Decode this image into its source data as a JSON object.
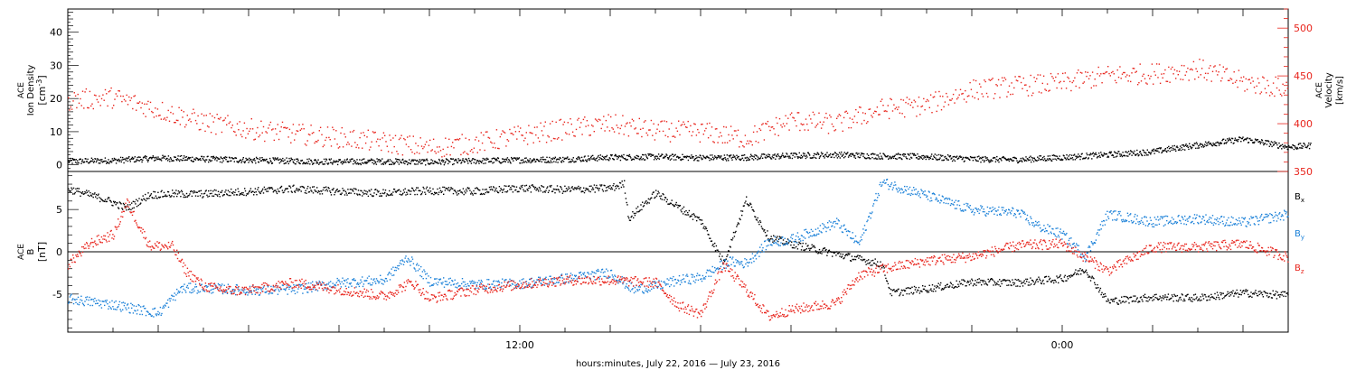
{
  "colors": {
    "black": "#000000",
    "red": "#e8241c",
    "blue": "#1a80d8"
  },
  "chart_data": [
    {
      "type": "scatter",
      "panel": "top",
      "ylabel_lines": [
        "ACE",
        "Ion Density",
        "[cm",
        "-3",
        "]"
      ],
      "ylim": [
        -2,
        47
      ],
      "yticks": [
        0,
        10,
        20,
        30,
        40
      ],
      "y2label_lines": [
        "ACE",
        "Velocity",
        "[km/s]"
      ],
      "y2lim": [
        350,
        520
      ],
      "y2ticks": [
        350,
        400,
        450,
        500
      ],
      "series": [
        {
          "role": "density",
          "axis": "left",
          "color": "#000000",
          "points": [
            [
              0,
              1.2
            ],
            [
              1,
              1.5
            ],
            [
              2,
              2.2
            ],
            [
              3,
              1.9
            ],
            [
              4,
              1.6
            ],
            [
              5,
              1.3
            ],
            [
              6,
              1.1
            ],
            [
              7,
              1.2
            ],
            [
              8,
              1.0
            ],
            [
              9,
              1.3
            ],
            [
              10,
              1.6
            ],
            [
              11,
              1.8
            ],
            [
              12,
              2.4
            ],
            [
              13,
              2.6
            ],
            [
              14,
              2.3
            ],
            [
              15,
              2.4
            ],
            [
              16,
              2.9
            ],
            [
              17,
              3.2
            ],
            [
              18,
              2.8
            ],
            [
              19,
              2.6
            ],
            [
              20,
              1.9
            ],
            [
              21,
              1.7
            ],
            [
              22,
              2.4
            ],
            [
              23,
              3.2
            ],
            [
              24,
              4.1
            ],
            [
              24.5,
              5.2
            ],
            [
              25,
              6.1
            ],
            [
              25.5,
              7.0
            ],
            [
              26,
              7.9
            ],
            [
              26.5,
              6.8
            ],
            [
              27,
              5.5
            ],
            [
              27.5,
              6.0
            ]
          ]
        },
        {
          "role": "velocity",
          "axis": "right",
          "color": "#e8241c",
          "points": [
            [
              0,
              425
            ],
            [
              1,
              428
            ],
            [
              2,
              415
            ],
            [
              3,
              402
            ],
            [
              4,
              395
            ],
            [
              5,
              390
            ],
            [
              6,
              386
            ],
            [
              7,
              381
            ],
            [
              8,
              375
            ],
            [
              9,
              380
            ],
            [
              10,
              388
            ],
            [
              11,
              395
            ],
            [
              12,
              400
            ],
            [
              13,
              393
            ],
            [
              14,
              392
            ],
            [
              15,
              385
            ],
            [
              16,
              404
            ],
            [
              17,
              400
            ],
            [
              18,
              416
            ],
            [
              19,
              420
            ],
            [
              20,
              436
            ],
            [
              21,
              440
            ],
            [
              22,
              443
            ],
            [
              23,
              451
            ],
            [
              24,
              453
            ],
            [
              25,
              458
            ],
            [
              26,
              444
            ],
            [
              27,
              437
            ]
          ]
        }
      ]
    },
    {
      "type": "scatter",
      "panel": "bottom",
      "ylabel_lines": [
        "ACE",
        "B",
        "[nT]"
      ],
      "ylim": [
        -9.5,
        9.5
      ],
      "yticks": [
        -5,
        0,
        5
      ],
      "legend": {
        "placement": "right",
        "entries": [
          "B",
          "B",
          "B"
        ],
        "subscripts": [
          "x",
          "y",
          "z"
        ]
      },
      "series": [
        {
          "role": "Bx",
          "color": "#000000",
          "points": [
            [
              0,
              7.5
            ],
            [
              0.8,
              6.3
            ],
            [
              1.3,
              5.2
            ],
            [
              1.8,
              6.8
            ],
            [
              2.3,
              6.9
            ],
            [
              3,
              6.9
            ],
            [
              4,
              7.2
            ],
            [
              5,
              7.5
            ],
            [
              6,
              7.2
            ],
            [
              7,
              7.0
            ],
            [
              8,
              7.3
            ],
            [
              9,
              7.2
            ],
            [
              10,
              7.6
            ],
            [
              11,
              7.4
            ],
            [
              12,
              7.6
            ],
            [
              12.3,
              8.1
            ],
            [
              12.4,
              4.0
            ],
            [
              13,
              7.0
            ],
            [
              14,
              3.7
            ],
            [
              14.5,
              -1.2
            ],
            [
              15,
              6.2
            ],
            [
              15.5,
              1.8
            ],
            [
              16,
              1.0
            ],
            [
              17,
              -0.2
            ],
            [
              18,
              -1.4
            ],
            [
              18.2,
              -4.8
            ],
            [
              19,
              -4.3
            ],
            [
              20,
              -3.5
            ],
            [
              21,
              -3.6
            ],
            [
              22,
              -3.1
            ],
            [
              22.5,
              -2.0
            ],
            [
              23,
              -5.8
            ],
            [
              24,
              -5.3
            ],
            [
              25,
              -5.4
            ],
            [
              26,
              -4.8
            ],
            [
              27,
              -5.1
            ]
          ]
        },
        {
          "role": "By",
          "color": "#1a80d8",
          "points": [
            [
              0,
              -5.5
            ],
            [
              1,
              -6.2
            ],
            [
              2,
              -7.2
            ],
            [
              2.5,
              -4.3
            ],
            [
              3,
              -4.2
            ],
            [
              4,
              -4.5
            ],
            [
              5,
              -4.4
            ],
            [
              6,
              -3.6
            ],
            [
              7,
              -3.3
            ],
            [
              7.5,
              -0.6
            ],
            [
              8,
              -3.4
            ],
            [
              9,
              -3.8
            ],
            [
              10,
              -3.7
            ],
            [
              11,
              -3.1
            ],
            [
              12,
              -2.4
            ],
            [
              12.5,
              -4.4
            ],
            [
              13,
              -4.0
            ],
            [
              13.5,
              -3.3
            ],
            [
              14,
              -3.0
            ],
            [
              14.6,
              -1.1
            ],
            [
              15,
              -1.3
            ],
            [
              15.5,
              1.2
            ],
            [
              16,
              1.5
            ],
            [
              17,
              3.5
            ],
            [
              17.5,
              1.0
            ],
            [
              18,
              8.3
            ],
            [
              19,
              6.7
            ],
            [
              20,
              5.0
            ],
            [
              21,
              4.7
            ],
            [
              21.5,
              3.0
            ],
            [
              22,
              2.1
            ],
            [
              22.5,
              -0.5
            ],
            [
              23,
              4.5
            ],
            [
              24,
              3.6
            ],
            [
              25,
              4.0
            ],
            [
              26,
              3.5
            ],
            [
              27,
              4.5
            ]
          ]
        },
        {
          "role": "Bz",
          "color": "#e8241c",
          "points": [
            [
              0,
              -1.4
            ],
            [
              0.5,
              1.1
            ],
            [
              1,
              2.1
            ],
            [
              1.3,
              5.9
            ],
            [
              1.8,
              0.8
            ],
            [
              2.3,
              0.7
            ],
            [
              2.6,
              -2.2
            ],
            [
              3,
              -4.0
            ],
            [
              3.5,
              -4.5
            ],
            [
              4,
              -4.5
            ],
            [
              5,
              -3.6
            ],
            [
              6,
              -4.4
            ],
            [
              7,
              -5.2
            ],
            [
              7.6,
              -3.5
            ],
            [
              8,
              -5.5
            ],
            [
              9,
              -4.4
            ],
            [
              10,
              -3.8
            ],
            [
              11,
              -3.3
            ],
            [
              12,
              -3.3
            ],
            [
              13,
              -3.6
            ],
            [
              13.5,
              -6.3
            ],
            [
              14,
              -7.3
            ],
            [
              14.5,
              -1.5
            ],
            [
              15,
              -4.4
            ],
            [
              15.5,
              -7.6
            ],
            [
              16,
              -6.8
            ],
            [
              17,
              -6.0
            ],
            [
              17.5,
              -2.7
            ],
            [
              18,
              -2.0
            ],
            [
              19,
              -1.0
            ],
            [
              20,
              -0.5
            ],
            [
              21,
              0.8
            ],
            [
              22,
              1.0
            ],
            [
              23,
              -2.2
            ],
            [
              24,
              0.6
            ],
            [
              25,
              0.6
            ],
            [
              26,
              1.0
            ],
            [
              27,
              -0.6
            ]
          ]
        }
      ]
    }
  ],
  "xaxis": {
    "xlim": [
      0,
      27
    ],
    "tick_labels": [
      {
        "x": 10,
        "label": "12:00"
      },
      {
        "x": 22,
        "label": "0:00"
      }
    ],
    "label": "hours:minutes, July 22, 2016 — July 23, 2016"
  }
}
